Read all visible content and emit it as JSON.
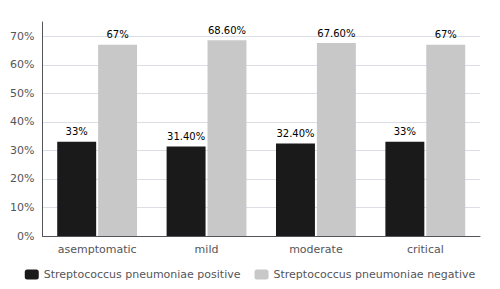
{
  "chart_data": {
    "type": "bar",
    "categories": [
      "asemptomatic",
      "mild",
      "moderate",
      "critical"
    ],
    "series": [
      {
        "name": "Streptococcus pneumoniae positive",
        "color": "#1a1a1a",
        "values": [
          33,
          31.4,
          32.4,
          33
        ],
        "value_labels": [
          "33%",
          "31.40%",
          "32.40%",
          "33%"
        ]
      },
      {
        "name": "Streptococcus pneumoniae negative",
        "color": "#c8c8c8",
        "values": [
          67,
          68.6,
          67.6,
          67
        ],
        "value_labels": [
          "67%",
          "68.60%",
          "67.60%",
          "67%"
        ]
      }
    ],
    "ylim": [
      0,
      75
    ],
    "yticks": [
      {
        "value": 0,
        "label": "0%"
      },
      {
        "value": 10,
        "label": "10%"
      },
      {
        "value": 20,
        "label": "20%"
      },
      {
        "value": 30,
        "label": "30%"
      },
      {
        "value": 40,
        "label": "40%"
      },
      {
        "value": 50,
        "label": "50%"
      },
      {
        "value": 60,
        "label": "60%"
      },
      {
        "value": 70,
        "label": "70%"
      }
    ],
    "grid": true,
    "legend": "bottom",
    "data_labels": true
  }
}
